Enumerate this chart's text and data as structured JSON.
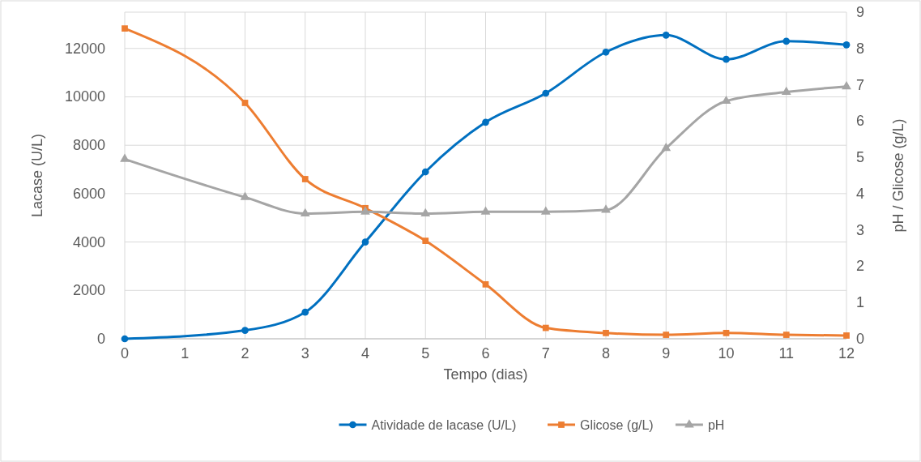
{
  "chart_data": {
    "type": "line",
    "xlabel": "Tempo (dias)",
    "ylabel": "Lacase (U/L)",
    "y2label": "pH / Glicose (g/L)",
    "x": [
      0,
      2,
      3,
      4,
      5,
      6,
      7,
      8,
      9,
      10,
      11,
      12
    ],
    "xlim": [
      0,
      12
    ],
    "xticks": [
      0,
      1,
      2,
      3,
      4,
      5,
      6,
      7,
      8,
      9,
      10,
      11,
      12
    ],
    "ylim": [
      0,
      13500
    ],
    "yticks": [
      0,
      2000,
      4000,
      6000,
      8000,
      10000,
      12000
    ],
    "y2lim": [
      0,
      9
    ],
    "y2ticks": [
      0,
      1,
      2,
      3,
      4,
      5,
      6,
      7,
      8,
      9
    ],
    "grid": true,
    "legend": "bottom",
    "series": [
      {
        "name": "Atividade de lacase (U/L)",
        "color": "#0070c0",
        "marker": "circle",
        "values": [
          0,
          350,
          1100,
          4000,
          6900,
          8950,
          10150,
          11850,
          12550,
          11550,
          12300,
          12150
        ]
      },
      {
        "name": "Glicose (g/L)",
        "color": "#ed7d31",
        "marker": "square",
        "axis": "y2",
        "values": [
          8.55,
          6.5,
          4.4,
          3.6,
          2.7,
          1.5,
          0.3,
          0.16,
          0.11,
          0.16,
          0.11,
          0.09
        ]
      },
      {
        "name": "pH",
        "color": "#a5a5a5",
        "marker": "triangle",
        "axis": "y2",
        "values": [
          4.95,
          3.9,
          3.45,
          3.5,
          3.45,
          3.5,
          3.5,
          3.55,
          5.25,
          6.55,
          6.8,
          6.95
        ]
      }
    ]
  }
}
